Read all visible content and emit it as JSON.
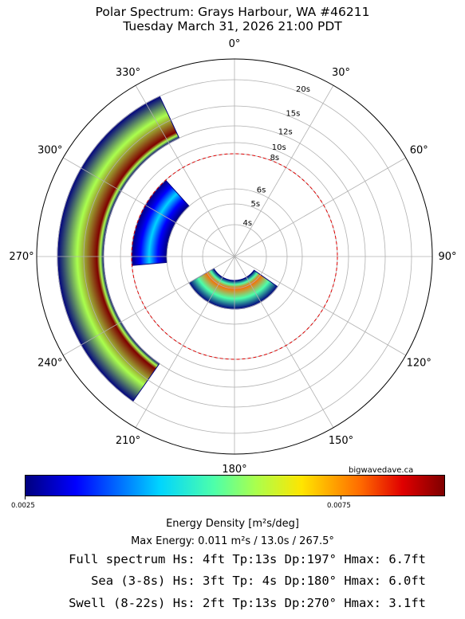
{
  "title": "Polar Spectrum: Grays Harbour, WA #46211",
  "subtitle": "Tuesday March 31, 2026 21:00 PDT",
  "credit": "bigwavedave.ca",
  "colorbar": {
    "label": "Energy Density [m²s/deg]",
    "tick_min": "0.0025",
    "tick_mid": "0.0075",
    "colors": [
      "#00007f",
      "#0000ff",
      "#00d4ff",
      "#4dffaa",
      "#aaff4d",
      "#ffe500",
      "#ff6a00",
      "#e00000",
      "#7f0000"
    ]
  },
  "max_energy": "Max Energy: 0.011 m²s  /  13.0s  /  267.5°",
  "stats": [
    "Full spectrum Hs: 4ft Tp:13s Dp:197° Hmax: 6.7ft",
    "Sea (3-8s) Hs: 3ft Tp: 4s Dp:180° Hmax: 6.0ft",
    "Swell (8-22s) Hs: 2ft Tp:13s Dp:270° Hmax: 3.1ft"
  ],
  "chart_data": {
    "type": "heatmap",
    "projection": "polar",
    "theta_zero": "north",
    "theta_direction": "clockwise",
    "angle_ticks": [
      "0°",
      "30°",
      "60°",
      "90°",
      "120°",
      "150°",
      "180°",
      "210°",
      "240°",
      "270°",
      "300°",
      "330°"
    ],
    "radial_tick_labels": [
      "4s",
      "5s",
      "6s",
      "8s",
      "10s",
      "12s",
      "15s",
      "20s"
    ],
    "sea_swell_boundary_period": "8s",
    "boundary_color": "#e00000",
    "grid": true,
    "energy_blobs": [
      {
        "name_hint": "swell",
        "direction_center_deg": 270,
        "direction_span_deg": [
          215,
          335
        ],
        "period_range_s": [
          12,
          20
        ],
        "peak_period_s": 13,
        "relative_peak": 1.0
      },
      {
        "name_hint": "mid-period swell",
        "direction_center_deg": 290,
        "direction_span_deg": [
          265,
          318
        ],
        "period_range_s": [
          6,
          8
        ],
        "peak_period_s": 7,
        "relative_peak": 0.3
      },
      {
        "name_hint": "sea",
        "direction_center_deg": 180,
        "direction_span_deg": [
          125,
          240
        ],
        "period_range_s": [
          3,
          5
        ],
        "peak_period_s": 4,
        "relative_peak": 0.7
      }
    ]
  }
}
